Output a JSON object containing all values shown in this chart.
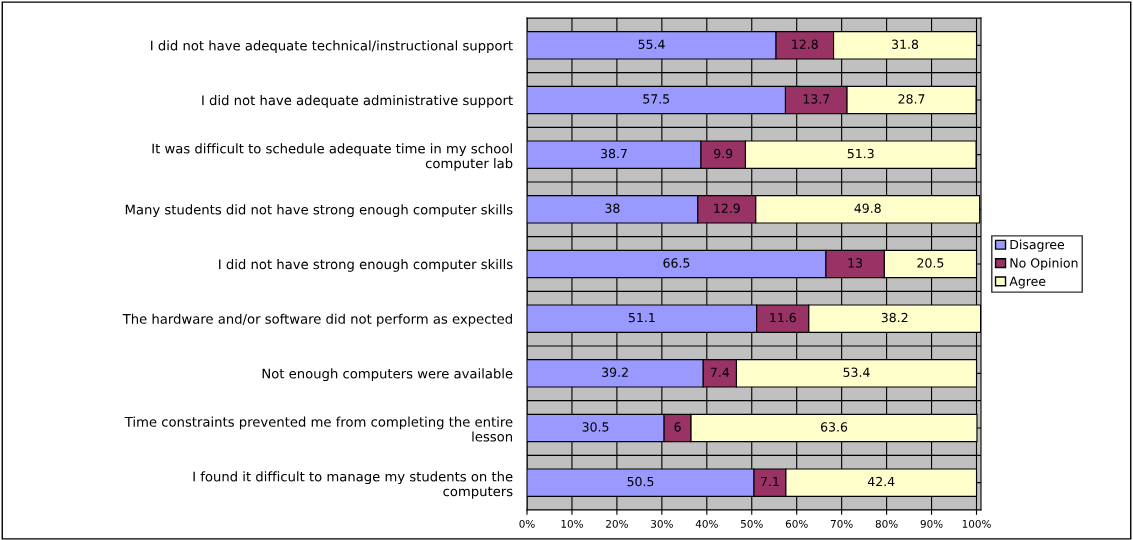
{
  "chart_data": {
    "type": "bar",
    "orientation": "horizontal",
    "stacked": true,
    "categories": [
      "I did not have adequate technical/instructional support",
      "I did not have adequate administrative support",
      "It was difficult to schedule adequate time in my school\ncomputer lab",
      "Many students did not have strong enough computer skills",
      "I did not have strong enough computer skills",
      "The hardware and/or software did not perform as expected",
      "Not enough computers were available",
      "Time constraints prevented me from completing the entire\nlesson",
      "I found it difficult to manage my students on the\ncomputers"
    ],
    "series": [
      {
        "name": "Disagree",
        "color": "#9999ff",
        "values": [
          55.4,
          57.5,
          38.7,
          38,
          66.5,
          51.1,
          39.2,
          30.5,
          50.5
        ]
      },
      {
        "name": "No Opinion",
        "color": "#993366",
        "values": [
          12.8,
          13.7,
          9.9,
          12.9,
          13,
          11.6,
          7.4,
          6,
          7.1
        ]
      },
      {
        "name": "Agree",
        "color": "#ffffcc",
        "values": [
          31.8,
          28.7,
          51.3,
          49.8,
          20.5,
          38.2,
          53.4,
          63.6,
          42.4
        ]
      }
    ],
    "data_labels": true,
    "xlim": [
      0,
      101
    ],
    "xticks": [
      {
        "value": 0,
        "label": "0%"
      },
      {
        "value": 10,
        "label": "10%"
      },
      {
        "value": 20,
        "label": "20%"
      },
      {
        "value": 30,
        "label": "30%"
      },
      {
        "value": 40,
        "label": "40%"
      },
      {
        "value": 50,
        "label": "50%"
      },
      {
        "value": 60,
        "label": "60%"
      },
      {
        "value": 70,
        "label": "70%"
      },
      {
        "value": 80,
        "label": "80%"
      },
      {
        "value": 90,
        "label": "90%"
      },
      {
        "value": 100,
        "label": "100%"
      }
    ],
    "grid": true,
    "legend": "right"
  }
}
